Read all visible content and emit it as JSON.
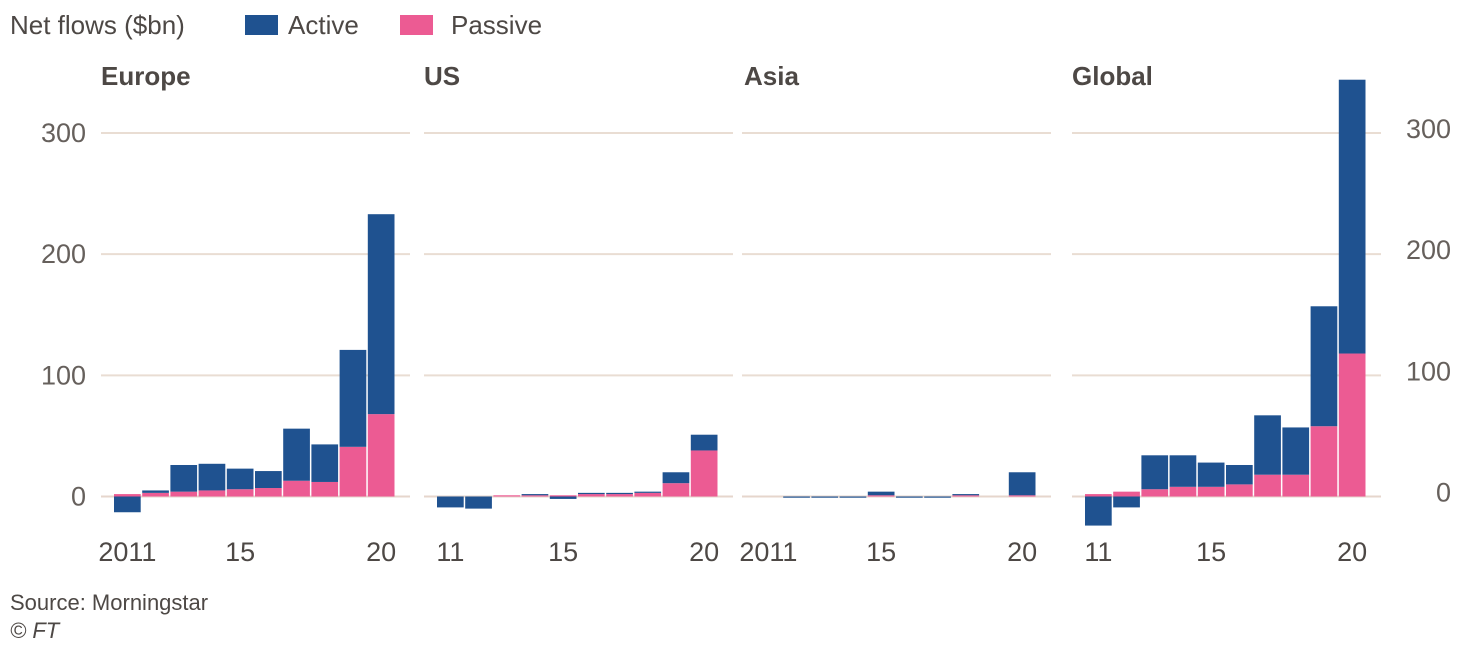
{
  "legend": {
    "title": "Net flows ($bn)",
    "items": [
      {
        "label": "Active",
        "color": "#1f5290"
      },
      {
        "label": "Passive",
        "color": "#ec5b93"
      }
    ]
  },
  "footer": {
    "source": "Source: Morningstar",
    "copyright": "© FT"
  },
  "chart_data": [
    {
      "type": "bar",
      "stacked": true,
      "title": "Europe",
      "years": [
        2011,
        2012,
        2013,
        2014,
        2015,
        2016,
        2017,
        2018,
        2019,
        2020
      ],
      "x_tick_labels": [
        {
          "year": 2011,
          "label": "2011"
        },
        {
          "year": 2015,
          "label": "15"
        },
        {
          "year": 2020,
          "label": "20"
        }
      ],
      "series": [
        {
          "name": "Passive",
          "values": [
            2,
            3,
            4,
            5,
            6,
            7,
            13,
            12,
            41,
            68
          ]
        },
        {
          "name": "Active",
          "values": [
            -13,
            2,
            22,
            22,
            17,
            14,
            43,
            31,
            80,
            165
          ]
        }
      ],
      "ylim": [
        -25,
        350
      ],
      "y_ticks": [
        0,
        100,
        200,
        300
      ],
      "y_axis_side": "left"
    },
    {
      "type": "bar",
      "stacked": true,
      "title": "US",
      "years": [
        2011,
        2012,
        2013,
        2014,
        2015,
        2016,
        2017,
        2018,
        2019,
        2020
      ],
      "x_tick_labels": [
        {
          "year": 2011,
          "label": "11"
        },
        {
          "year": 2015,
          "label": "15"
        },
        {
          "year": 2020,
          "label": "20"
        }
      ],
      "series": [
        {
          "name": "Passive",
          "values": [
            0,
            0,
            1,
            1,
            1,
            2,
            2,
            3,
            11,
            38
          ]
        },
        {
          "name": "Active",
          "values": [
            -9,
            -10,
            0,
            1,
            -2,
            1,
            1,
            1,
            9,
            13
          ]
        }
      ],
      "ylim": [
        -25,
        350
      ],
      "y_ticks": [
        0,
        100,
        200,
        300
      ],
      "y_axis_side": "none"
    },
    {
      "type": "bar",
      "stacked": true,
      "title": "Asia",
      "years": [
        2011,
        2012,
        2013,
        2014,
        2015,
        2016,
        2017,
        2018,
        2019,
        2020
      ],
      "x_tick_labels": [
        {
          "year": 2011,
          "label": "2011"
        },
        {
          "year": 2015,
          "label": "15"
        },
        {
          "year": 2020,
          "label": "20"
        }
      ],
      "series": [
        {
          "name": "Passive",
          "values": [
            0,
            0,
            0,
            0,
            1,
            0,
            0,
            1,
            0,
            1
          ]
        },
        {
          "name": "Active",
          "values": [
            0,
            -1,
            -1,
            -1,
            3,
            -1,
            -1,
            1,
            0,
            19
          ]
        }
      ],
      "ylim": [
        -25,
        350
      ],
      "y_ticks": [
        0,
        100,
        200,
        300
      ],
      "y_axis_side": "none"
    },
    {
      "type": "bar",
      "stacked": true,
      "title": "Global",
      "years": [
        2011,
        2012,
        2013,
        2014,
        2015,
        2016,
        2017,
        2018,
        2019,
        2020
      ],
      "x_tick_labels": [
        {
          "year": 2011,
          "label": "11"
        },
        {
          "year": 2015,
          "label": "15"
        },
        {
          "year": 2020,
          "label": "20"
        }
      ],
      "series": [
        {
          "name": "Passive",
          "values": [
            2,
            4,
            6,
            8,
            8,
            10,
            18,
            18,
            58,
            118
          ]
        },
        {
          "name": "Active",
          "values": [
            -24,
            -9,
            28,
            26,
            20,
            16,
            49,
            39,
            99,
            226
          ]
        }
      ],
      "ylim": [
        -25,
        350
      ],
      "y_ticks": [
        0,
        100,
        200,
        300
      ],
      "y_axis_side": "right"
    }
  ]
}
